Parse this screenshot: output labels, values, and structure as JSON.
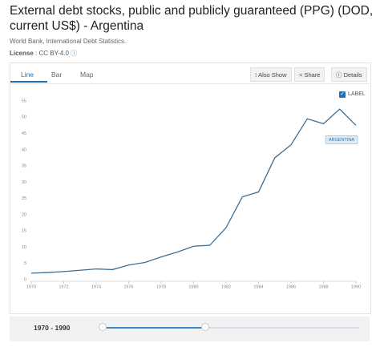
{
  "title": "External debt stocks, public and publicly guaranteed (PPG) (DOD, current US$) - Argentina",
  "source": "World Bank, International Debt Statistics.",
  "license_label": "License",
  "license_value": ": CC BY-4.0",
  "tabs": [
    "Line",
    "Bar",
    "Map"
  ],
  "buttons": [
    "Also Show",
    "Share",
    "Details"
  ],
  "label_toggle": "LABEL",
  "range": "1970 - 1990",
  "chart_data": {
    "type": "line",
    "x": [
      1970,
      1971,
      1972,
      1973,
      1974,
      1975,
      1976,
      1977,
      1978,
      1979,
      1980,
      1981,
      1982,
      1983,
      1984,
      1985,
      1986,
      1987,
      1988,
      1989,
      1990
    ],
    "series": [
      {
        "name": "ARGENTINA",
        "color": "#3d6f98",
        "values": [
          2,
          2.2,
          2.5,
          2.9,
          3.3,
          3.1,
          4.5,
          5.3,
          7,
          8.5,
          10.3,
          10.6,
          16,
          25.5,
          27,
          37.5,
          41.5,
          49.5,
          48,
          52.5,
          47.5
        ]
      }
    ],
    "xlim": [
      1970,
      1990
    ],
    "xticks": [
      1970,
      1972,
      1974,
      1976,
      1978,
      1980,
      1982,
      1984,
      1986,
      1988,
      1990
    ],
    "ylim": [
      0,
      55
    ],
    "yticks": [
      0,
      5,
      10,
      15,
      20,
      25,
      30,
      35,
      40,
      45,
      50,
      55
    ],
    "grid": false
  }
}
